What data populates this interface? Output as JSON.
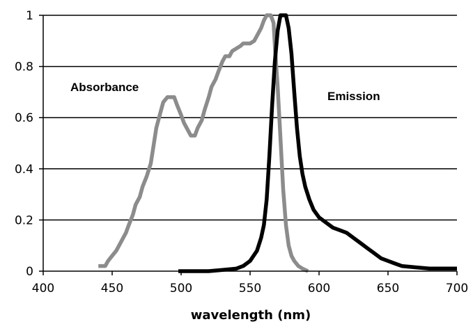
{
  "chart_data": {
    "type": "line",
    "title": "",
    "xlabel": "wavelength (nm)",
    "ylabel": "",
    "xlim": [
      400,
      700
    ],
    "ylim": [
      0,
      1
    ],
    "grid": "horizontal",
    "legend": "none",
    "x_ticks": [
      "400",
      "450",
      "500",
      "550",
      "600",
      "650",
      "700"
    ],
    "y_ticks": [
      "0",
      "0.2",
      "0.4",
      "0.6",
      "0.8",
      "1"
    ],
    "series": [
      {
        "name": "Absorbance",
        "color": "#8c8c8c",
        "x": [
          440,
          445,
          447,
          450,
          453,
          455,
          458,
          460,
          462,
          465,
          467,
          470,
          472,
          475,
          478,
          480,
          482,
          485,
          487,
          490,
          492,
          495,
          497,
          500,
          502,
          505,
          507,
          510,
          512,
          515,
          517,
          520,
          522,
          525,
          527,
          530,
          532,
          535,
          537,
          540,
          543,
          545,
          548,
          550,
          553,
          555,
          558,
          560,
          562,
          565,
          567,
          568,
          570,
          572,
          574,
          576,
          578,
          580,
          582,
          585,
          588,
          590,
          592
        ],
        "y": [
          0.02,
          0.02,
          0.04,
          0.06,
          0.08,
          0.1,
          0.13,
          0.15,
          0.18,
          0.22,
          0.26,
          0.29,
          0.33,
          0.37,
          0.42,
          0.49,
          0.56,
          0.62,
          0.66,
          0.68,
          0.68,
          0.68,
          0.65,
          0.61,
          0.58,
          0.55,
          0.53,
          0.53,
          0.56,
          0.59,
          0.63,
          0.68,
          0.72,
          0.75,
          0.78,
          0.82,
          0.84,
          0.84,
          0.86,
          0.87,
          0.88,
          0.89,
          0.89,
          0.89,
          0.9,
          0.92,
          0.95,
          0.98,
          1.0,
          1.0,
          0.97,
          0.88,
          0.72,
          0.52,
          0.32,
          0.18,
          0.1,
          0.06,
          0.04,
          0.02,
          0.01,
          0.005,
          0.0
        ]
      },
      {
        "name": "Emission",
        "color": "#000000",
        "x": [
          498,
          510,
          520,
          530,
          540,
          545,
          550,
          555,
          558,
          560,
          562,
          564,
          566,
          568,
          570,
          572,
          574,
          576,
          578,
          580,
          582,
          584,
          586,
          588,
          590,
          593,
          596,
          600,
          605,
          610,
          615,
          620,
          625,
          630,
          635,
          640,
          645,
          650,
          655,
          660,
          670,
          680,
          690,
          700
        ],
        "y": [
          0.0,
          0.0,
          0.0,
          0.005,
          0.01,
          0.02,
          0.04,
          0.08,
          0.13,
          0.18,
          0.28,
          0.45,
          0.65,
          0.82,
          0.94,
          1.0,
          1.0,
          1.0,
          0.95,
          0.85,
          0.7,
          0.56,
          0.45,
          0.38,
          0.33,
          0.28,
          0.24,
          0.21,
          0.19,
          0.17,
          0.16,
          0.15,
          0.13,
          0.11,
          0.09,
          0.07,
          0.05,
          0.04,
          0.03,
          0.02,
          0.015,
          0.01,
          0.01,
          0.01
        ]
      }
    ]
  }
}
